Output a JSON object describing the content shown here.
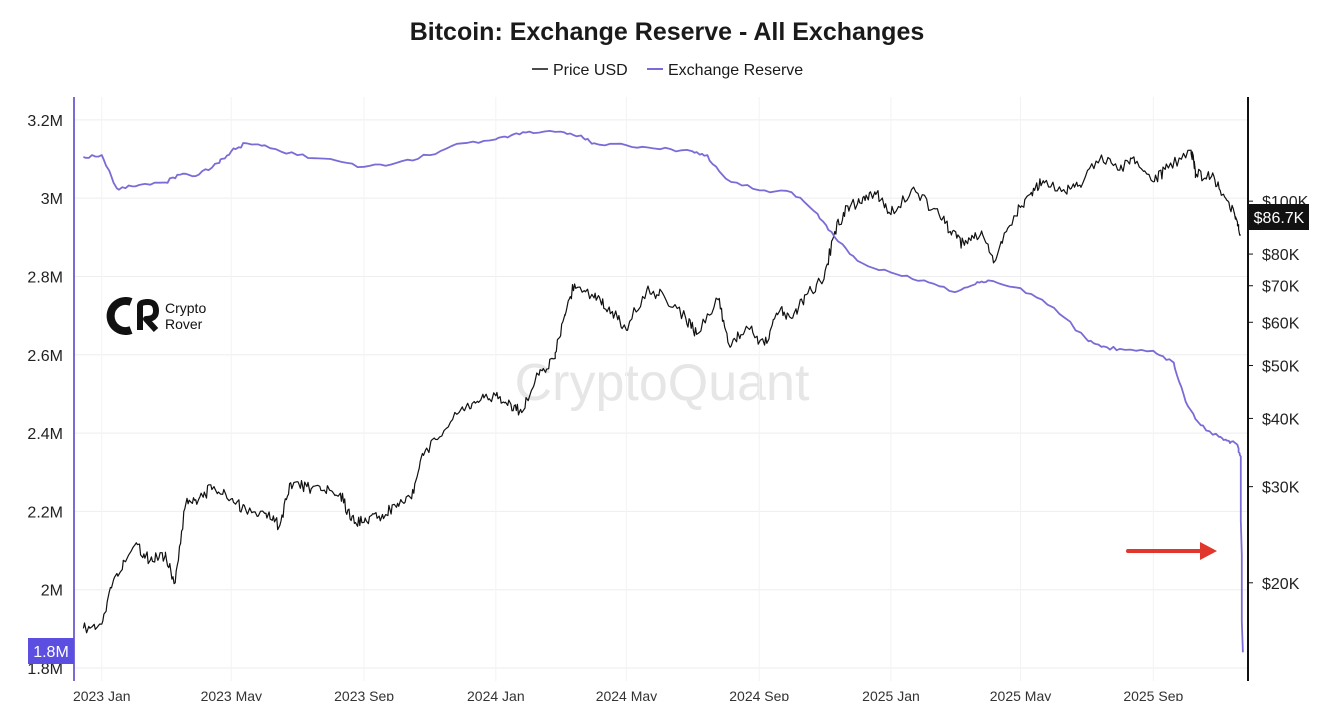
{
  "chart_data": {
    "type": "line",
    "title": "Bitcoin: Exchange Reserve - All Exchanges",
    "legend": {
      "placement": "top-center",
      "entries": [
        "Price USD",
        "Exchange Reserve"
      ]
    },
    "x_ticks": [
      "2023 Jan",
      "2023 May",
      "2023 Sep",
      "2024 Jan",
      "2024 May",
      "2024 Sep",
      "2025 Jan",
      "2025 May",
      "2025 Sep"
    ],
    "left_axis": {
      "name": "Exchange Reserve",
      "ticks": [
        1800000,
        2000000,
        2200000,
        2400000,
        2600000,
        2800000,
        3000000,
        3200000
      ],
      "tick_labels": [
        "1.8M",
        "2M",
        "2.2M",
        "2.4M",
        "2.6M",
        "2.8M",
        "3M",
        "3.2M"
      ],
      "range": [
        1800000,
        3220000
      ]
    },
    "right_axis": {
      "name": "Price USD",
      "scale": "log",
      "ticks": [
        20000,
        30000,
        40000,
        50000,
        60000,
        70000,
        80000,
        100000
      ],
      "tick_labels": [
        "$20K",
        "$30K",
        "$40K",
        "$50K",
        "$60K",
        "$70K",
        "$80K",
        "$100K"
      ],
      "range": [
        15000,
        135000
      ]
    },
    "current_price_label": "$86.7K",
    "current_reserve_label": "1.8M",
    "grid": true,
    "series": [
      {
        "name": "Price USD",
        "color": "#111111",
        "x": [
          "2022-12-15",
          "2023-01-01",
          "2023-01-15",
          "2023-02-01",
          "2023-02-15",
          "2023-03-01",
          "2023-03-10",
          "2023-03-20",
          "2023-04-01",
          "2023-04-15",
          "2023-05-01",
          "2023-05-15",
          "2023-06-01",
          "2023-06-15",
          "2023-06-25",
          "2023-07-10",
          "2023-07-25",
          "2023-08-10",
          "2023-08-20",
          "2023-09-01",
          "2023-09-15",
          "2023-10-01",
          "2023-10-15",
          "2023-10-25",
          "2023-11-10",
          "2023-12-01",
          "2023-12-15",
          "2024-01-01",
          "2024-01-15",
          "2024-01-25",
          "2024-02-10",
          "2024-02-25",
          "2024-03-05",
          "2024-03-14",
          "2024-04-01",
          "2024-04-15",
          "2024-05-01",
          "2024-05-20",
          "2024-06-05",
          "2024-06-25",
          "2024-07-05",
          "2024-07-25",
          "2024-08-05",
          "2024-08-20",
          "2024-09-06",
          "2024-09-20",
          "2024-10-01",
          "2024-10-15",
          "2024-10-31",
          "2024-11-10",
          "2024-11-22",
          "2024-12-05",
          "2024-12-17",
          "2025-01-01",
          "2025-01-20",
          "2025-02-10",
          "2025-02-25",
          "2025-03-10",
          "2025-03-25",
          "2025-04-08",
          "2025-04-25",
          "2025-05-10",
          "2025-05-22",
          "2025-06-10",
          "2025-06-25",
          "2025-07-14",
          "2025-08-01",
          "2025-08-14",
          "2025-09-01",
          "2025-09-15",
          "2025-10-06",
          "2025-10-11",
          "2025-10-25",
          "2025-11-05",
          "2025-11-15",
          "2025-11-21"
        ],
        "values": [
          16500,
          16800,
          20800,
          23500,
          22000,
          22500,
          20000,
          28000,
          28500,
          30000,
          28500,
          27000,
          26800,
          25500,
          30500,
          30000,
          29500,
          29200,
          26000,
          25800,
          26500,
          27500,
          28500,
          34500,
          37000,
          42000,
          43000,
          44000,
          42500,
          41000,
          48000,
          51500,
          62000,
          70500,
          66500,
          64000,
          58000,
          69000,
          67000,
          61000,
          57000,
          66000,
          54000,
          59000,
          54500,
          63000,
          61000,
          67500,
          72000,
          88000,
          98000,
          99000,
          104000,
          94500,
          105000,
          97000,
          88000,
          83000,
          87000,
          78000,
          94000,
          103000,
          109000,
          105000,
          107000,
          120000,
          114000,
          120500,
          108500,
          115000,
          124000,
          112000,
          111000,
          103000,
          95000,
          86700
        ]
      },
      {
        "name": "Exchange Reserve",
        "color": "#7a6cd6",
        "x": [
          "2022-12-15",
          "2023-01-01",
          "2023-01-15",
          "2023-02-01",
          "2023-03-01",
          "2023-03-15",
          "2023-04-01",
          "2023-04-20",
          "2023-05-01",
          "2023-05-15",
          "2023-06-01",
          "2023-07-01",
          "2023-08-01",
          "2023-09-01",
          "2023-10-01",
          "2023-11-01",
          "2023-12-01",
          "2024-01-01",
          "2024-01-15",
          "2024-02-01",
          "2024-03-01",
          "2024-03-20",
          "2024-04-01",
          "2024-05-01",
          "2024-06-01",
          "2024-07-01",
          "2024-07-15",
          "2024-08-01",
          "2024-09-01",
          "2024-10-01",
          "2024-10-25",
          "2024-11-10",
          "2024-12-01",
          "2025-01-01",
          "2025-02-01",
          "2025-03-01",
          "2025-03-20",
          "2025-04-01",
          "2025-05-01",
          "2025-06-01",
          "2025-07-01",
          "2025-07-15",
          "2025-08-01",
          "2025-09-01",
          "2025-09-20",
          "2025-10-01",
          "2025-10-15",
          "2025-11-01",
          "2025-11-10",
          "2025-11-18",
          "2025-11-21",
          "2025-11-23"
        ],
        "values": [
          3105000,
          3110000,
          3025000,
          3030000,
          3040000,
          3060000,
          3060000,
          3090000,
          3120000,
          3140000,
          3135000,
          3110000,
          3100000,
          3080000,
          3090000,
          3110000,
          3140000,
          3150000,
          3160000,
          3170000,
          3170000,
          3160000,
          3140000,
          3135000,
          3125000,
          3120000,
          3110000,
          3050000,
          3020000,
          3015000,
          2960000,
          2900000,
          2840000,
          2810000,
          2790000,
          2760000,
          2780000,
          2790000,
          2770000,
          2720000,
          2640000,
          2620000,
          2615000,
          2610000,
          2580000,
          2480000,
          2420000,
          2390000,
          2380000,
          2370000,
          2340000,
          1840000
        ]
      }
    ]
  },
  "watermark": "CryptoQuant",
  "logo": {
    "line1": "Crypto",
    "line2": "Rover"
  },
  "annotation": {
    "type": "arrow",
    "color": "#e0362c"
  }
}
